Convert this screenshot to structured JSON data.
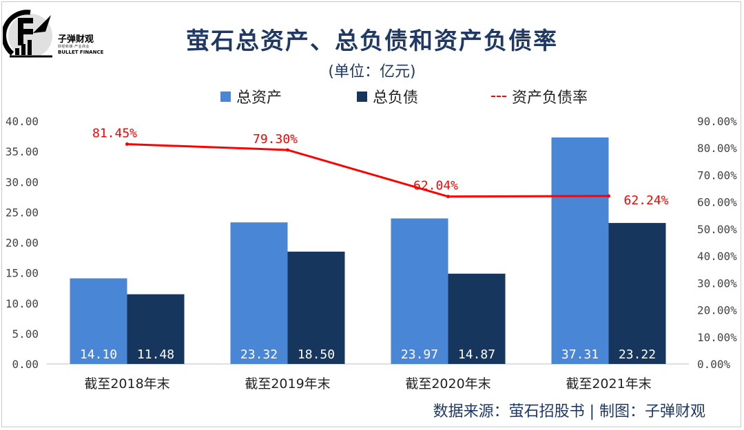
{
  "logo": {
    "name": "子弹财观",
    "tagline": "财经新媒·产业商业",
    "english": "BULLET FINANCE"
  },
  "chart_data": {
    "type": "bar",
    "title": "萤石总资产、总负债和资产负债率",
    "subtitle": "(单位：亿元)",
    "categories": [
      "截至2018年末",
      "截至2019年末",
      "截至2020年末",
      "截至2021年末"
    ],
    "series": [
      {
        "name": "总资产",
        "type": "bar",
        "axis": "left",
        "color": "#4a86d6",
        "values": [
          14.1,
          23.32,
          23.97,
          37.31
        ],
        "labels": [
          "14.10",
          "23.32",
          "23.97",
          "37.31"
        ]
      },
      {
        "name": "总负债",
        "type": "bar",
        "axis": "left",
        "color": "#17365d",
        "values": [
          11.48,
          18.5,
          14.87,
          23.22
        ],
        "labels": [
          "11.48",
          "18.50",
          "14.87",
          "23.22"
        ]
      },
      {
        "name": "资产负债率",
        "type": "line",
        "axis": "right",
        "color": "#ff0000",
        "values": [
          81.45,
          79.3,
          62.04,
          62.24
        ],
        "labels": [
          "81.45%",
          "79.30%",
          "62.04%",
          "62.24%"
        ]
      }
    ],
    "left_axis": {
      "range": [
        0,
        40
      ],
      "ticks": [
        "0.00",
        "5.00",
        "10.00",
        "15.00",
        "20.00",
        "25.00",
        "30.00",
        "35.00",
        "40.00"
      ]
    },
    "right_axis": {
      "range": [
        0,
        90
      ],
      "ticks": [
        "0.00%",
        "10.00%",
        "20.00%",
        "30.00%",
        "40.00%",
        "50.00%",
        "60.00%",
        "70.00%",
        "80.00%",
        "90.00%"
      ]
    },
    "legend_position": "top-center",
    "grid": false
  },
  "source": "数据来源：萤石招股书  |  制图：子弹财观"
}
